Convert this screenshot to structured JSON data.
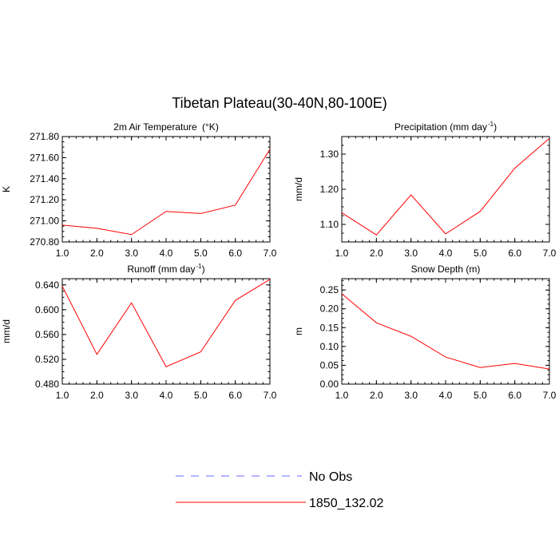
{
  "figure": {
    "title": "Tibetan Plateau(30-40N,80-100E)"
  },
  "legend": {
    "entries": [
      {
        "label": "No Obs",
        "color": "#6a6aff",
        "style": "dashed"
      },
      {
        "label": "1850_132.02",
        "color": "#ff0000",
        "style": "solid"
      }
    ]
  },
  "chart_data": [
    {
      "type": "line",
      "title": "2m Air Temperature",
      "title_unit": "(°K)",
      "ylabel": "K",
      "xlim": [
        1,
        7
      ],
      "ylim": [
        270.8,
        271.8
      ],
      "xticks": [
        1,
        2,
        3,
        4,
        5,
        6,
        7
      ],
      "xtick_labels": [
        "1.0",
        "2.0",
        "3.0",
        "4.0",
        "5.0",
        "6.0",
        "7.0"
      ],
      "yticks": [
        270.8,
        271.0,
        271.2,
        271.4,
        271.6,
        271.8
      ],
      "ytick_labels": [
        "270.80",
        "271.00",
        "271.20",
        "271.40",
        "271.60",
        "271.80"
      ],
      "series": [
        {
          "name": "1850_132.02",
          "color": "#ff0000",
          "x": [
            1,
            2,
            3,
            4,
            5,
            6,
            7
          ],
          "values": [
            270.96,
            270.93,
            270.87,
            271.09,
            271.07,
            271.15,
            271.68
          ]
        }
      ]
    },
    {
      "type": "line",
      "title": "Precipitation (mm day",
      "title_sup": "-1",
      "title_tail": ")",
      "ylabel": "mm/d",
      "xlim": [
        1,
        7
      ],
      "ylim": [
        1.05,
        1.35
      ],
      "xticks": [
        1,
        2,
        3,
        4,
        5,
        6,
        7
      ],
      "xtick_labels": [
        "1.0",
        "2.0",
        "3.0",
        "4.0",
        "5.0",
        "6.0",
        "7.0"
      ],
      "yticks": [
        1.1,
        1.2,
        1.3
      ],
      "ytick_labels": [
        "1.10",
        "1.20",
        "1.30"
      ],
      "series": [
        {
          "name": "1850_132.02",
          "color": "#ff0000",
          "x": [
            1,
            2,
            3,
            4,
            5,
            6,
            7
          ],
          "values": [
            1.133,
            1.07,
            1.184,
            1.073,
            1.137,
            1.26,
            1.345
          ]
        }
      ]
    },
    {
      "type": "line",
      "title": "Runoff (mm day",
      "title_sup": "-1",
      "title_tail": ")",
      "ylabel": "mm/d",
      "xlim": [
        1,
        7
      ],
      "ylim": [
        0.48,
        0.65
      ],
      "xticks": [
        1,
        2,
        3,
        4,
        5,
        6,
        7
      ],
      "xtick_labels": [
        "1.0",
        "2.0",
        "3.0",
        "4.0",
        "5.0",
        "6.0",
        "7.0"
      ],
      "yticks": [
        0.48,
        0.52,
        0.56,
        0.6,
        0.64
      ],
      "ytick_labels": [
        "0.480",
        "0.520",
        "0.560",
        "0.600",
        "0.640"
      ],
      "series": [
        {
          "name": "1850_132.02",
          "color": "#ff0000",
          "x": [
            1,
            2,
            3,
            4,
            5,
            6,
            7
          ],
          "values": [
            0.638,
            0.528,
            0.611,
            0.508,
            0.532,
            0.615,
            0.649
          ]
        }
      ]
    },
    {
      "type": "line",
      "title": "Snow Depth (m)",
      "ylabel": "m",
      "xlim": [
        1,
        7
      ],
      "ylim": [
        0,
        0.28
      ],
      "xticks": [
        1,
        2,
        3,
        4,
        5,
        6,
        7
      ],
      "xtick_labels": [
        "1.0",
        "2.0",
        "3.0",
        "4.0",
        "5.0",
        "6.0",
        "7.0"
      ],
      "yticks": [
        0,
        0.05,
        0.1,
        0.15,
        0.2,
        0.25
      ],
      "ytick_labels": [
        "0.00",
        "0.05",
        "0.10",
        "0.15",
        "0.20",
        "0.25"
      ],
      "series": [
        {
          "name": "1850_132.02",
          "color": "#ff0000",
          "x": [
            1,
            2,
            3,
            4,
            5,
            6,
            7
          ],
          "values": [
            0.24,
            0.163,
            0.127,
            0.072,
            0.044,
            0.055,
            0.04
          ]
        }
      ]
    }
  ]
}
